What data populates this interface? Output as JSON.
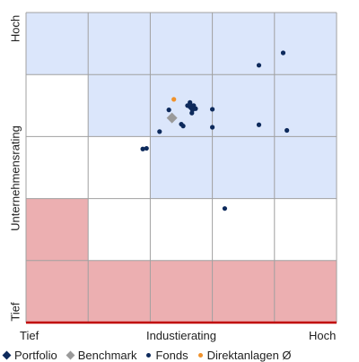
{
  "colors": {
    "portfolio": "#0d2a5c",
    "benchmark": "#9a9a9a",
    "fonds": "#0d2a5c",
    "direktanlagen": "#f0922b",
    "zone_blue": "#dbe6fb",
    "zone_red": "#ecafb1",
    "grid": "#a0a0a0",
    "baseline": "#c00000"
  },
  "chart_data": {
    "type": "scatter",
    "xlabel": "Industierating",
    "ylabel": "Unternehmensrating",
    "x_tick_labels": {
      "low": "Tief",
      "high": "Hoch"
    },
    "y_tick_labels": {
      "low": "Tief",
      "high": "Hoch"
    },
    "xlim": [
      0,
      5
    ],
    "ylim": [
      0,
      5
    ],
    "grid": true,
    "legend_position": "bottom",
    "zones": {
      "blue": [
        [
          0,
          4
        ],
        [
          1,
          4
        ],
        [
          2,
          4
        ],
        [
          3,
          4
        ],
        [
          4,
          4
        ],
        [
          1,
          3
        ],
        [
          2,
          3
        ],
        [
          3,
          3
        ],
        [
          4,
          3
        ],
        [
          2,
          2
        ],
        [
          3,
          2
        ],
        [
          4,
          2
        ]
      ],
      "red": [
        [
          0,
          1
        ],
        [
          0,
          0
        ],
        [
          1,
          0
        ],
        [
          2,
          0
        ],
        [
          3,
          0
        ],
        [
          4,
          0
        ]
      ]
    },
    "legend": [
      {
        "key": "portfolio",
        "label": "Portfolio",
        "marker": "diamond"
      },
      {
        "key": "benchmark",
        "label": "Benchmark",
        "marker": "diamond"
      },
      {
        "key": "fonds",
        "label": "Fonds",
        "marker": "dot"
      },
      {
        "key": "direktanlagen",
        "label": "Direktanlagen Ø",
        "marker": "dot"
      }
    ],
    "series": [
      {
        "name": "Portfolio",
        "key": "portfolio",
        "marker": "diamond",
        "points": [
          [
            2.67,
            3.47
          ]
        ]
      },
      {
        "name": "Benchmark",
        "key": "benchmark",
        "marker": "diamond",
        "points": [
          [
            2.35,
            3.3
          ]
        ]
      },
      {
        "name": "Fonds",
        "key": "fonds",
        "marker": "dot",
        "points": [
          [
            3.75,
            4.15
          ],
          [
            4.14,
            4.35
          ],
          [
            2.6,
            3.5
          ],
          [
            2.7,
            3.5
          ],
          [
            2.64,
            3.55
          ],
          [
            2.73,
            3.45
          ],
          [
            2.67,
            3.38
          ],
          [
            2.68,
            3.43
          ],
          [
            2.3,
            3.43
          ],
          [
            2.5,
            3.2
          ],
          [
            2.53,
            3.17
          ],
          [
            2.15,
            3.08
          ],
          [
            3.0,
            3.44
          ],
          [
            3.0,
            3.15
          ],
          [
            3.75,
            3.19
          ],
          [
            4.2,
            3.1
          ],
          [
            1.88,
            2.8
          ],
          [
            1.94,
            2.81
          ],
          [
            3.2,
            1.84
          ]
        ]
      },
      {
        "name": "Direktanlagen Ø",
        "key": "direktanlagen",
        "marker": "dot",
        "points": [
          [
            2.38,
            3.6
          ]
        ]
      }
    ]
  }
}
